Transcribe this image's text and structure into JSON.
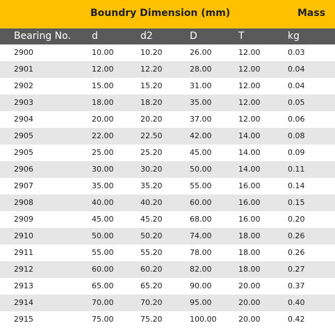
{
  "header": {
    "group_label": "Boundry Dimension (mm)",
    "mass_label": "Mass"
  },
  "columns": [
    "Bearing No.",
    "d",
    "d2",
    "D",
    "T",
    "kg"
  ],
  "rows": [
    [
      "2900",
      "10.00",
      "10.20",
      "26.00",
      "12.00",
      "0.03"
    ],
    [
      "2901",
      "12.00",
      "12.20",
      "28.00",
      "12.00",
      "0.04"
    ],
    [
      "2902",
      "15.00",
      "15.20",
      "31.00",
      "12.00",
      "0.04"
    ],
    [
      "2903",
      "18.00",
      "18.20",
      "35.00",
      "12.00",
      "0.05"
    ],
    [
      "2904",
      "20.00",
      "20.20",
      "37.00",
      "12.00",
      "0.06"
    ],
    [
      "2905",
      "22.00",
      "22.50",
      "42.00",
      "14.00",
      "0.08"
    ],
    [
      "2905",
      "25.00",
      "25.20",
      "45.00",
      "14.00",
      "0.09"
    ],
    [
      "2906",
      "30.00",
      "30.20",
      "50.00",
      "14.00",
      "0.11"
    ],
    [
      "2907",
      "35.00",
      "35.20",
      "55.00",
      "16.00",
      "0.14"
    ],
    [
      "2908",
      "40.00",
      "40.20",
      "60.00",
      "16.00",
      "0.15"
    ],
    [
      "2909",
      "45.00",
      "45.20",
      "68.00",
      "16.00",
      "0.20"
    ],
    [
      "2910",
      "50.00",
      "50.20",
      "74.00",
      "18.00",
      "0.26"
    ],
    [
      "2911",
      "55.00",
      "55.20",
      "78.00",
      "18.00",
      "0.26"
    ],
    [
      "2912",
      "60.00",
      "60.20",
      "82.00",
      "18.00",
      "0.27"
    ],
    [
      "2913",
      "65.00",
      "65.20",
      "90.00",
      "20.00",
      "0.37"
    ],
    [
      "2914",
      "70.00",
      "70.20",
      "95.00",
      "20.00",
      "0.40"
    ],
    [
      "2915",
      "75.00",
      "75.20",
      "100.00",
      "20.00",
      "0.42"
    ]
  ],
  "colors": {
    "header_bg": "#ffc000",
    "column_header_bg": "#595959",
    "row_shade": "#e7e6e6"
  }
}
